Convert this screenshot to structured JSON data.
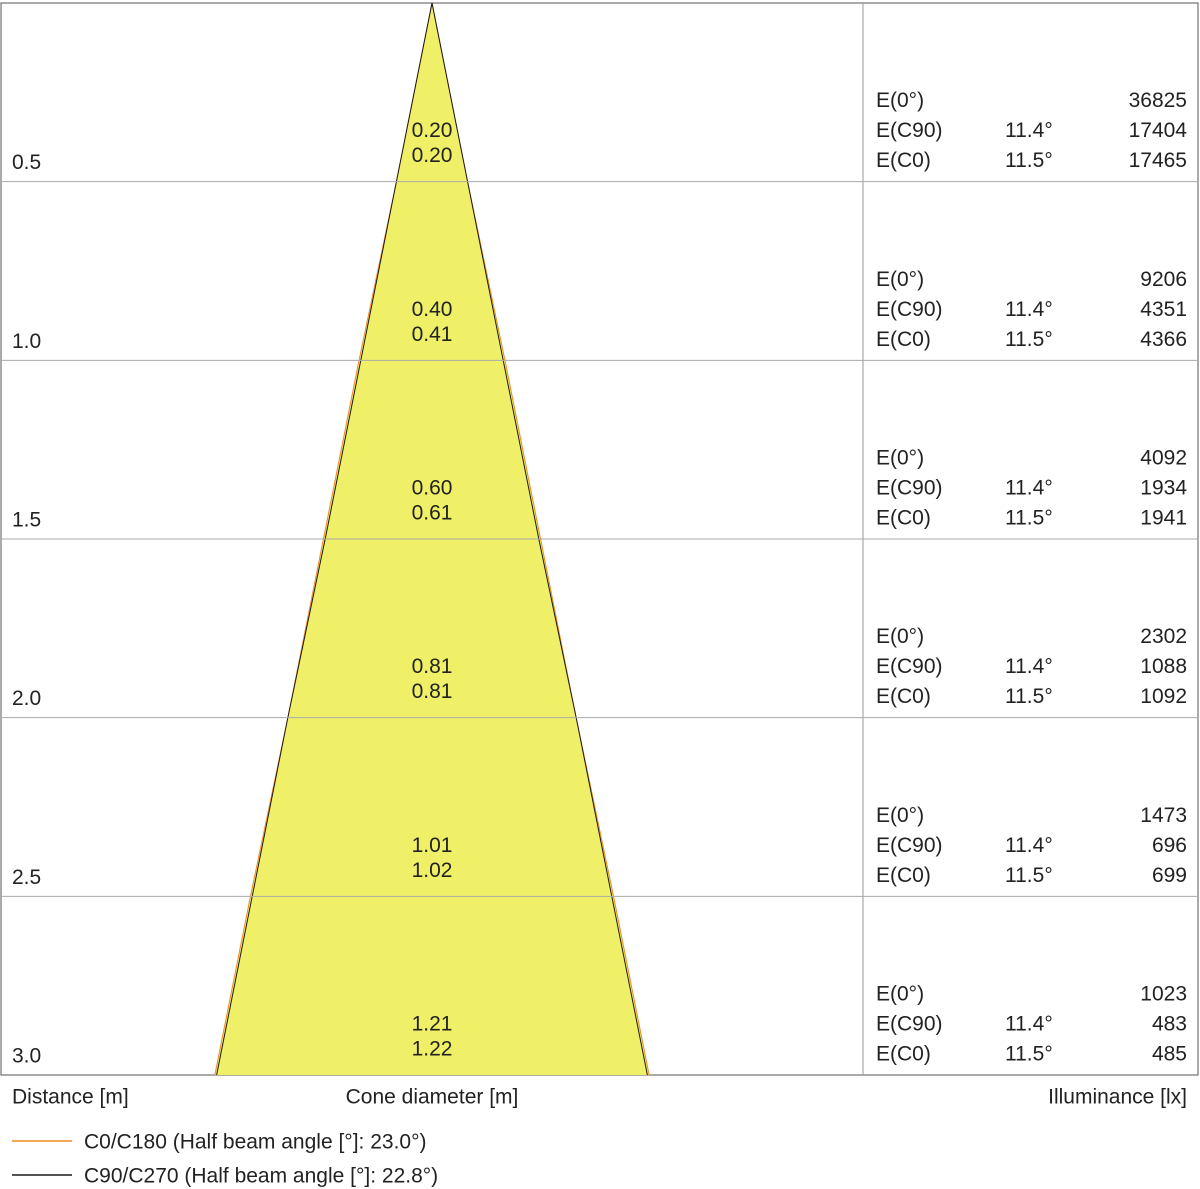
{
  "chart_data": {
    "type": "cone",
    "x_label": "Distance [m]",
    "center_label": "Cone diameter [m]",
    "right_label": "Illuminance [lx]",
    "ylim": [
      0,
      3.0
    ],
    "distances": [
      0.5,
      {
        "value": 1,
        "label": "1.0"
      },
      1.5,
      {
        "value": 2,
        "label": "2.0"
      },
      2.5,
      {
        "value": 3,
        "label": "3.0"
      }
    ],
    "series": [
      {
        "name": "C0/C180 (Half beam angle [°]: 23.0°)",
        "color": "#f08a24",
        "values": [
          0.2,
          0.41,
          0.61,
          0.81,
          1.02,
          1.22
        ],
        "value_labels": [
          "0.20",
          "0.41",
          "0.61",
          "0.81",
          "1.02",
          "1.22"
        ]
      },
      {
        "name": "C90/C270 (Half beam angle [°]: 22.8°)",
        "color": "#1a1a1a",
        "values": [
          0.2,
          0.4,
          0.6,
          0.81,
          1.01,
          1.21
        ],
        "value_labels": [
          "0.20",
          "0.40",
          "0.60",
          "0.81",
          "1.01",
          "1.21"
        ]
      }
    ],
    "fill_color": "#f0f068",
    "illuminance": [
      {
        "name": "E(0°)",
        "values": [
          36825,
          9206,
          4092,
          2302,
          1473,
          1023
        ]
      },
      {
        "name": "E(C90)",
        "angle": "11.4°",
        "values": [
          17404,
          4351,
          1934,
          1088,
          696,
          483
        ]
      },
      {
        "name": "E(C0)",
        "angle": "11.5°",
        "values": [
          17465,
          4366,
          1941,
          1092,
          699,
          485
        ]
      }
    ]
  }
}
